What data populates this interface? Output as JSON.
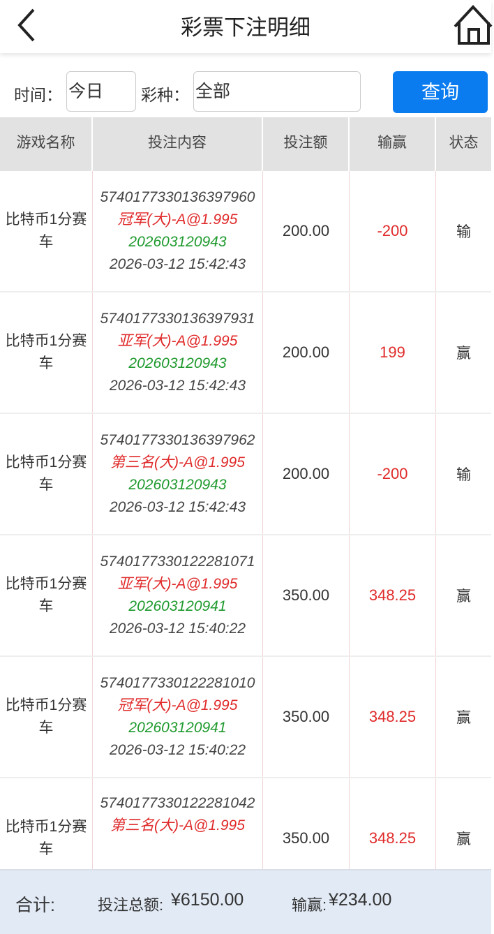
{
  "header": {
    "title": "彩票下注明细",
    "back_icon": "chevron-left-icon",
    "home_icon": "home-icon"
  },
  "filter": {
    "time_label": "时间：",
    "time_value": "今日",
    "type_label": "彩种：",
    "type_value": "全部",
    "query_button": "查询",
    "accent": "#0a7cf0"
  },
  "table": {
    "columns": [
      "游戏名称",
      "投注内容",
      "投注额",
      "输赢",
      "状态"
    ],
    "rows": [
      {
        "game": "比特币1分赛车",
        "order": "5740177330136397960",
        "bet": "冠军(大)-A@1.995",
        "issue": "202603120943",
        "time": "2026-03-12 15:42:43",
        "amount": "200.00",
        "result": "-200",
        "status": "输"
      },
      {
        "game": "比特币1分赛车",
        "order": "5740177330136397931",
        "bet": "亚军(大)-A@1.995",
        "issue": "202603120943",
        "time": "2026-03-12 15:42:43",
        "amount": "200.00",
        "result": "199",
        "status": "赢"
      },
      {
        "game": "比特币1分赛车",
        "order": "5740177330136397962",
        "bet": "第三名(大)-A@1.995",
        "issue": "202603120943",
        "time": "2026-03-12 15:42:43",
        "amount": "200.00",
        "result": "-200",
        "status": "输"
      },
      {
        "game": "比特币1分赛车",
        "order": "5740177330122281071",
        "bet": "亚军(大)-A@1.995",
        "issue": "202603120941",
        "time": "2026-03-12 15:40:22",
        "amount": "350.00",
        "result": "348.25",
        "status": "赢"
      },
      {
        "game": "比特币1分赛车",
        "order": "5740177330122281010",
        "bet": "冠军(大)-A@1.995",
        "issue": "202603120941",
        "time": "2026-03-12 15:40:22",
        "amount": "350.00",
        "result": "348.25",
        "status": "赢"
      },
      {
        "game": "比特币1分赛车",
        "order": "5740177330122281042",
        "bet": "第三名(大)-A@1.995",
        "issue": "",
        "time": "",
        "amount": "350.00",
        "result": "348.25",
        "status": "赢"
      }
    ]
  },
  "footer": {
    "total_label": "合计:",
    "bet_total_label": "投注总额:",
    "bet_total_value": "¥6150.00",
    "win_label": "输赢:",
    "win_value": "¥234.00"
  }
}
